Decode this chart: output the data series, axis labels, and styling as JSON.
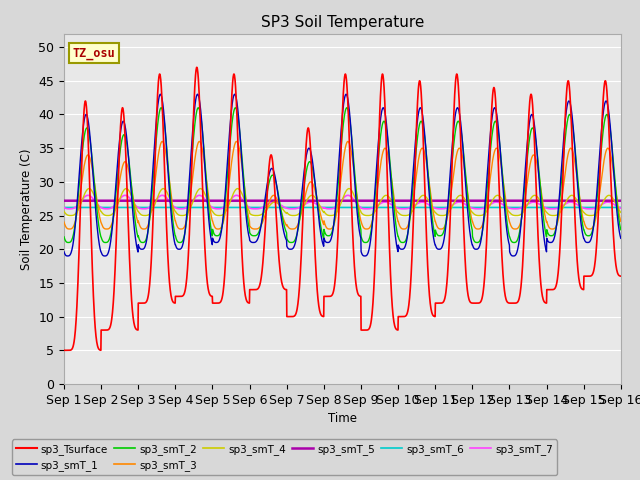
{
  "title": "SP3 Soil Temperature",
  "ylabel": "Soil Temperature (C)",
  "xlabel": "Time",
  "tz_label": "TZ_osu",
  "ylim": [
    0,
    52
  ],
  "yticks": [
    0,
    5,
    10,
    15,
    20,
    25,
    30,
    35,
    40,
    45,
    50
  ],
  "n_days": 15,
  "bg_color": "#d8d8d8",
  "plot_bg_color": "#e8e8e8",
  "series_colors": {
    "sp3_Tsurface": "#ff0000",
    "sp3_smT_1": "#0000bb",
    "sp3_smT_2": "#00cc00",
    "sp3_smT_3": "#ff8800",
    "sp3_smT_4": "#cccc00",
    "sp3_smT_5": "#aa00aa",
    "sp3_smT_6": "#00cccc",
    "sp3_smT_7": "#ff44ff"
  },
  "series_lw": {
    "sp3_Tsurface": 1.2,
    "sp3_smT_1": 1.0,
    "sp3_smT_2": 1.0,
    "sp3_smT_3": 1.0,
    "sp3_smT_4": 1.0,
    "sp3_smT_5": 1.8,
    "sp3_smT_6": 1.2,
    "sp3_smT_7": 1.2
  },
  "surface_peaks": [
    42,
    41,
    46,
    47,
    46,
    34,
    38,
    46,
    46,
    45,
    46,
    44,
    43,
    45,
    45
  ],
  "surface_troughs": [
    5,
    8,
    12,
    13,
    12,
    14,
    10,
    13,
    8,
    10,
    12,
    12,
    12,
    14,
    16
  ],
  "smT1_peaks": [
    40,
    39,
    43,
    43,
    43,
    32,
    35,
    43,
    41,
    41,
    41,
    41,
    40,
    42,
    42
  ],
  "smT1_troughs": [
    19,
    19,
    20,
    20,
    21,
    21,
    20,
    21,
    19,
    20,
    20,
    20,
    19,
    21,
    21
  ],
  "smT2_peaks": [
    38,
    37,
    41,
    41,
    41,
    31,
    33,
    41,
    39,
    39,
    39,
    39,
    38,
    40,
    40
  ],
  "smT2_troughs": [
    21,
    21,
    21,
    21,
    22,
    22,
    21,
    22,
    21,
    21,
    22,
    21,
    21,
    22,
    22
  ],
  "smT3_peaks": [
    34,
    33,
    36,
    36,
    36,
    28,
    30,
    36,
    35,
    35,
    35,
    35,
    34,
    35,
    35
  ],
  "smT3_troughs": [
    23,
    23,
    23,
    23,
    23,
    23,
    23,
    23,
    23,
    23,
    23,
    23,
    23,
    23,
    23
  ],
  "smT4_peaks": [
    29,
    29,
    29,
    29,
    29,
    27,
    28,
    29,
    28,
    28,
    28,
    28,
    28,
    28,
    28
  ],
  "smT4_troughs": [
    25,
    25,
    25,
    25,
    25,
    25,
    25,
    25,
    25,
    25,
    25,
    25,
    25,
    25,
    25
  ],
  "smT5_mean": 27.2,
  "smT6_mean": 26.2,
  "smT7_peaks": [
    28,
    28,
    28,
    28,
    28,
    27,
    27,
    28,
    27,
    27,
    27,
    27,
    27,
    27,
    27
  ],
  "smT7_troughs": [
    26,
    26,
    26,
    26,
    26,
    26,
    26,
    26,
    26,
    26,
    26,
    26,
    26,
    26,
    26
  ]
}
